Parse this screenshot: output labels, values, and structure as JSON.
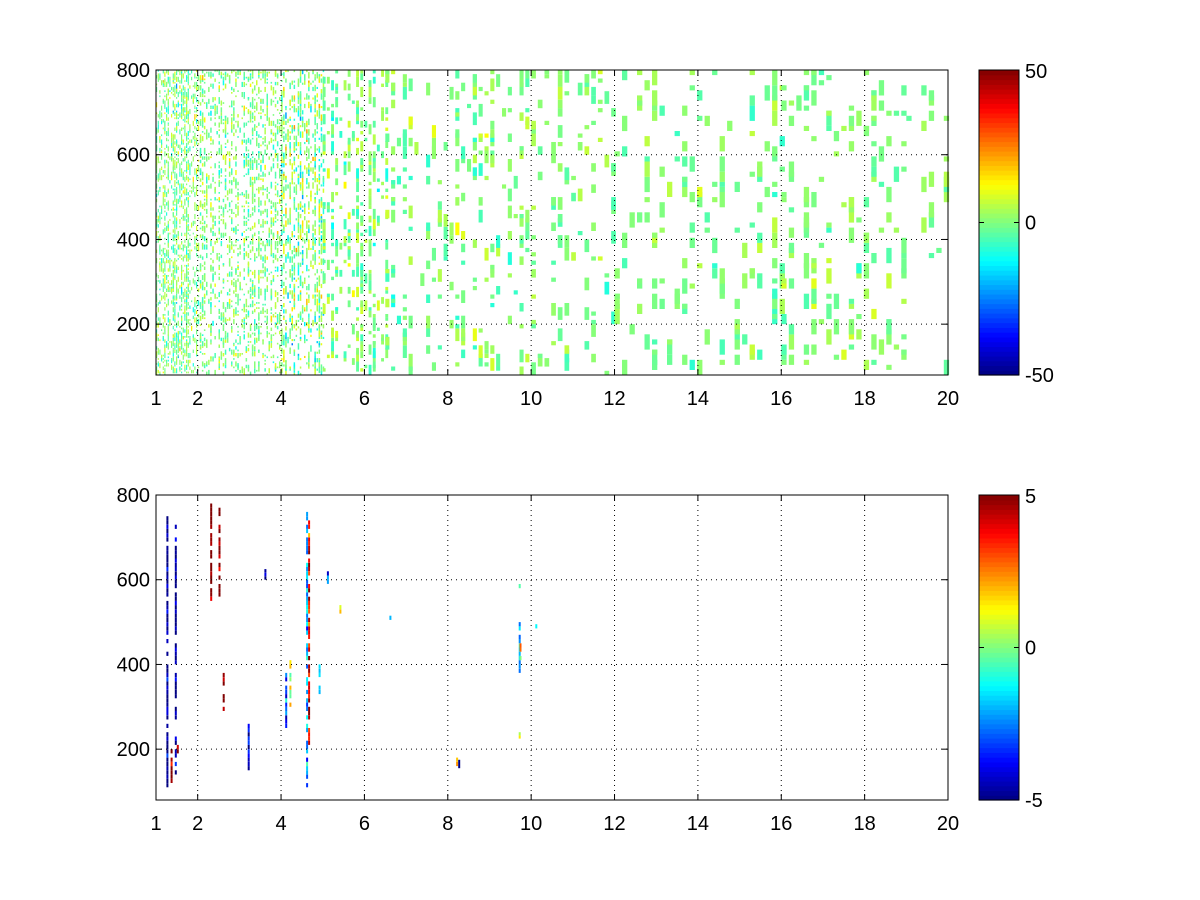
{
  "chart_data": [
    {
      "type": "heatmap",
      "title": "",
      "xlabel": "",
      "ylabel": "",
      "xlim": [
        1,
        20
      ],
      "ylim": [
        80,
        800
      ],
      "x_ticks": [
        1,
        2,
        4,
        6,
        8,
        10,
        12,
        14,
        16,
        18,
        20
      ],
      "y_ticks": [
        200,
        400,
        600,
        800
      ],
      "grid": true,
      "grid_style": "dotted",
      "colormap": "jet",
      "color_range": [
        -50,
        50
      ],
      "colorbar_ticks": [
        50,
        0,
        -50
      ],
      "background": "#ffffff",
      "density": 0.6,
      "regions": [
        {
          "x": [
            1.0,
            2.0
          ],
          "fill": 0.9,
          "value_sd": 10,
          "col_dx": 0.04,
          "row_dy": 4
        },
        {
          "x": [
            2.0,
            4.0
          ],
          "fill": 0.6,
          "value_sd": 9,
          "col_dx": 0.05,
          "row_dy": 4
        },
        {
          "x": [
            4.0,
            5.0
          ],
          "fill": 0.8,
          "value_sd": 14,
          "col_dx": 0.05,
          "row_dy": 5
        },
        {
          "x": [
            5.0,
            6.5
          ],
          "fill": 0.6,
          "value_sd": 9,
          "col_dx": 0.1,
          "row_dy": 8
        },
        {
          "x": [
            6.5,
            10.0
          ],
          "fill": 0.4,
          "value_sd": 7,
          "col_dx": 0.14,
          "row_dy": 10
        },
        {
          "x": [
            10.0,
            12.0
          ],
          "fill": 0.3,
          "value_sd": 6,
          "col_dx": 0.16,
          "row_dy": 10
        },
        {
          "x": [
            12.0,
            16.0
          ],
          "fill": 0.35,
          "value_sd": 6,
          "col_dx": 0.18,
          "row_dy": 12
        },
        {
          "x": [
            16.0,
            19.0
          ],
          "fill": 0.45,
          "value_sd": 6,
          "col_dx": 0.18,
          "row_dy": 12
        },
        {
          "x": [
            19.0,
            20.0
          ],
          "fill": 0.15,
          "value_sd": 5,
          "col_dx": 0.18,
          "row_dy": 12
        }
      ]
    },
    {
      "type": "heatmap",
      "title": "",
      "xlabel": "",
      "ylabel": "",
      "xlim": [
        1,
        20
      ],
      "ylim": [
        80,
        800
      ],
      "x_ticks": [
        1,
        2,
        4,
        6,
        8,
        10,
        12,
        14,
        16,
        18,
        20
      ],
      "y_ticks": [
        200,
        400,
        600,
        800
      ],
      "grid": true,
      "grid_style": "dotted",
      "colormap": "jet",
      "color_range": [
        -5,
        5
      ],
      "colorbar_ticks": [
        5,
        0,
        -5
      ],
      "background": "#ffffff",
      "streaks": [
        {
          "x": 1.25,
          "y": [
            110,
            750
          ],
          "v": -5
        },
        {
          "x": 1.35,
          "y": [
            120,
            200
          ],
          "v": 5
        },
        {
          "x": 1.45,
          "y": [
            130,
            740
          ],
          "v": -5
        },
        {
          "x": 1.5,
          "y": [
            190,
            210
          ],
          "v": 5
        },
        {
          "x": 2.3,
          "y": [
            540,
            780
          ],
          "v": 5
        },
        {
          "x": 2.5,
          "y": [
            560,
            770
          ],
          "v": 5
        },
        {
          "x": 2.6,
          "y": [
            290,
            380
          ],
          "v": 5
        },
        {
          "x": 3.2,
          "y": [
            150,
            270
          ],
          "v": -4
        },
        {
          "x": 3.6,
          "y": [
            600,
            625
          ],
          "v": -4
        },
        {
          "x": 4.1,
          "y": [
            250,
            400
          ],
          "v": -3
        },
        {
          "x": 4.2,
          "y": [
            300,
            410
          ],
          "v": 1
        },
        {
          "x": 4.6,
          "y": [
            90,
            760
          ],
          "v": -2
        },
        {
          "x": 4.65,
          "y": [
            200,
            740
          ],
          "v": 4
        },
        {
          "x": 4.9,
          "y": [
            330,
            400
          ],
          "v": -2
        },
        {
          "x": 5.1,
          "y": [
            590,
            620
          ],
          "v": -4
        },
        {
          "x": 5.4,
          "y": [
            520,
            540
          ],
          "v": 1
        },
        {
          "x": 6.6,
          "y": [
            505,
            515
          ],
          "v": -1
        },
        {
          "x": 8.2,
          "y": [
            160,
            190
          ],
          "v": 2
        },
        {
          "x": 8.25,
          "y": [
            155,
            175
          ],
          "v": -5
        },
        {
          "x": 9.7,
          "y": [
            380,
            500
          ],
          "v": -2
        },
        {
          "x": 9.72,
          "y": [
            400,
            460
          ],
          "v": 2
        },
        {
          "x": 9.7,
          "y": [
            225,
            240
          ],
          "v": 1
        },
        {
          "x": 9.7,
          "y": [
            580,
            590
          ],
          "v": 0
        },
        {
          "x": 10.1,
          "y": [
            485,
            495
          ],
          "v": -1
        }
      ]
    }
  ]
}
